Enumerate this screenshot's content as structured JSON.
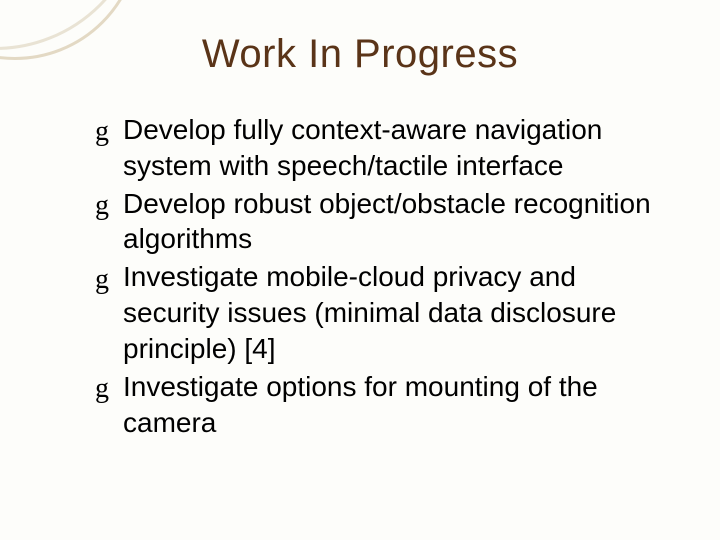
{
  "slide": {
    "title": "Work In Progress",
    "title_color": "#5a3418",
    "title_fontsize": 40,
    "background_color": "#fdfdfa",
    "body_fontsize": 28,
    "body_color": "#000000",
    "arc_color_outer": "#e9e3d4",
    "arc_color_inner": "#e3d9c4",
    "bullet_glyph": "g",
    "bullets": [
      "Develop fully context-aware navigation system with speech/tactile interface",
      "Develop robust object/obstacle recognition algorithms",
      "Investigate mobile-cloud privacy and security issues (minimal data disclosure principle) [4]",
      "Investigate options for mounting of the camera"
    ]
  }
}
